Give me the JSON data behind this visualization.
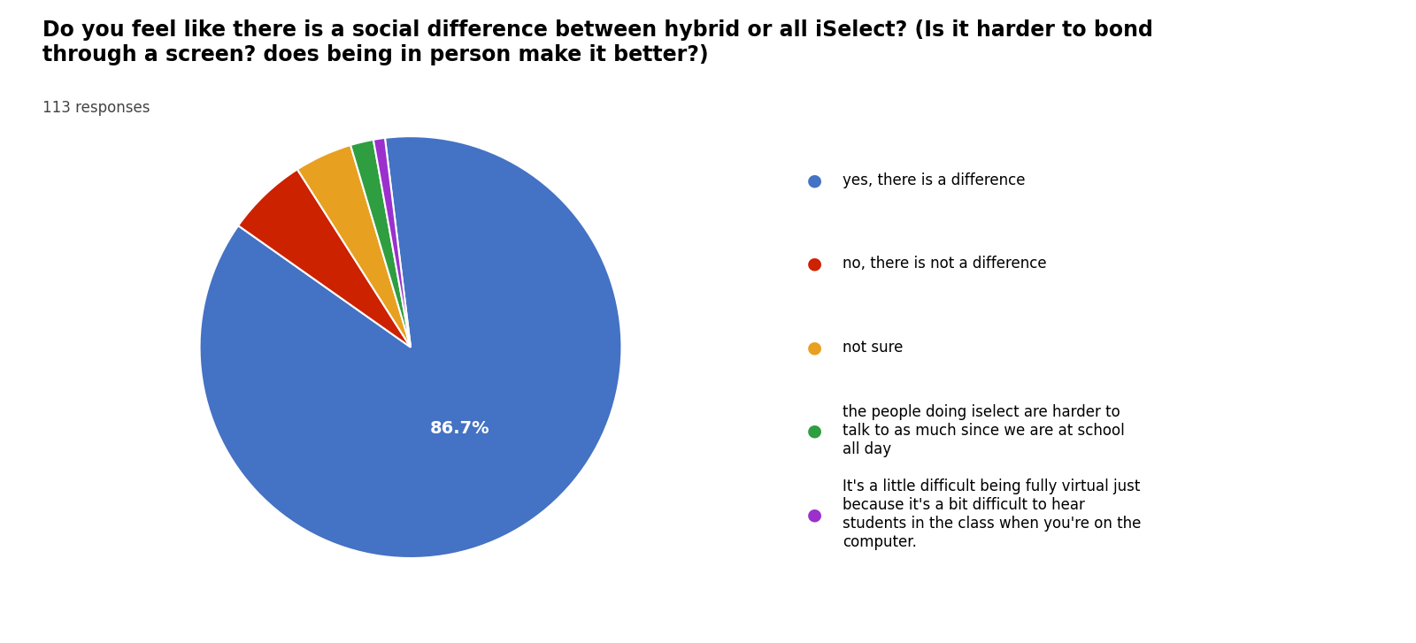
{
  "title": "Do you feel like there is a social difference between hybrid or all iSelect? (Is it harder to bond\nthrough a screen? does being in person make it better?)",
  "responses_label": "113 responses",
  "legend_labels": [
    "yes, there is a difference",
    "no, there is not a difference",
    "not sure",
    "the people doing iselect are harder to\ntalk to as much since we are at school\nall day",
    "It's a little difficult being fully virtual just\nbecause it's a bit difficult to hear\nstudents in the class when you're on the\ncomputer."
  ],
  "values": [
    98,
    7,
    5,
    2,
    1
  ],
  "colors": [
    "#4472C4",
    "#CC2200",
    "#E8A020",
    "#2E9E40",
    "#9B30CC"
  ],
  "title_fontsize": 17,
  "responses_fontsize": 12,
  "legend_fontsize": 12,
  "autopct_fontsize": 14,
  "background_color": "#ffffff",
  "startangle": 97,
  "pctdistance": 0.45
}
